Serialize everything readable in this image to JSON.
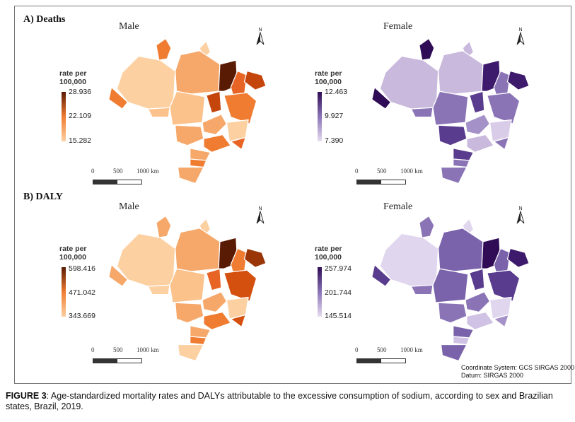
{
  "sections": {
    "deaths": {
      "title": "A) Deaths"
    },
    "daly": {
      "title": "B) DALY"
    }
  },
  "panels": {
    "deaths_male": {
      "label": "Male",
      "legend_title": "rate per\n100,000",
      "legend_max": "28.936",
      "legend_mid": "22.109",
      "legend_min": "15.282",
      "colors": {
        "low": "#fcd0a1",
        "mid": "#f07c32",
        "high": "#5a1b04"
      }
    },
    "deaths_female": {
      "label": "Female",
      "legend_title": "rate per\n100,000",
      "legend_max": "12.463",
      "legend_mid": "9.927",
      "legend_min": "7.390",
      "colors": {
        "low": "#e6ddf0",
        "mid": "#8a74b6",
        "high": "#2f0c55"
      }
    },
    "daly_male": {
      "label": "Male",
      "legend_title": "rate per\n100,000",
      "legend_max": "598.416",
      "legend_mid": "471.042",
      "legend_min": "343.669",
      "colors": {
        "low": "#fcd0a1",
        "mid": "#f07c32",
        "high": "#5a1b04"
      }
    },
    "daly_female": {
      "label": "Female",
      "legend_title": "rate per\n100,000",
      "legend_max": "257.974",
      "legend_mid": "201.744",
      "legend_min": "145.514",
      "colors": {
        "low": "#e6ddf0",
        "mid": "#8a74b6",
        "high": "#2f0c55"
      }
    }
  },
  "scale_bar": {
    "zero": "0",
    "mid": "500",
    "max": "1000 km"
  },
  "north_arrow": {
    "label": "N",
    "icon": "north-arrow-icon"
  },
  "coordinate_note": {
    "line1": "Coordinate System: GCS SIRGAS 2000",
    "line2": "Datum: SIRGAS 2000"
  },
  "caption": {
    "label": "FIGURE 3",
    "text": ": Age-standardized mortality rates and DALYs attributable to the excessive consumption of sodium, according to sex and Brazilian states, Brazil, 2019."
  }
}
